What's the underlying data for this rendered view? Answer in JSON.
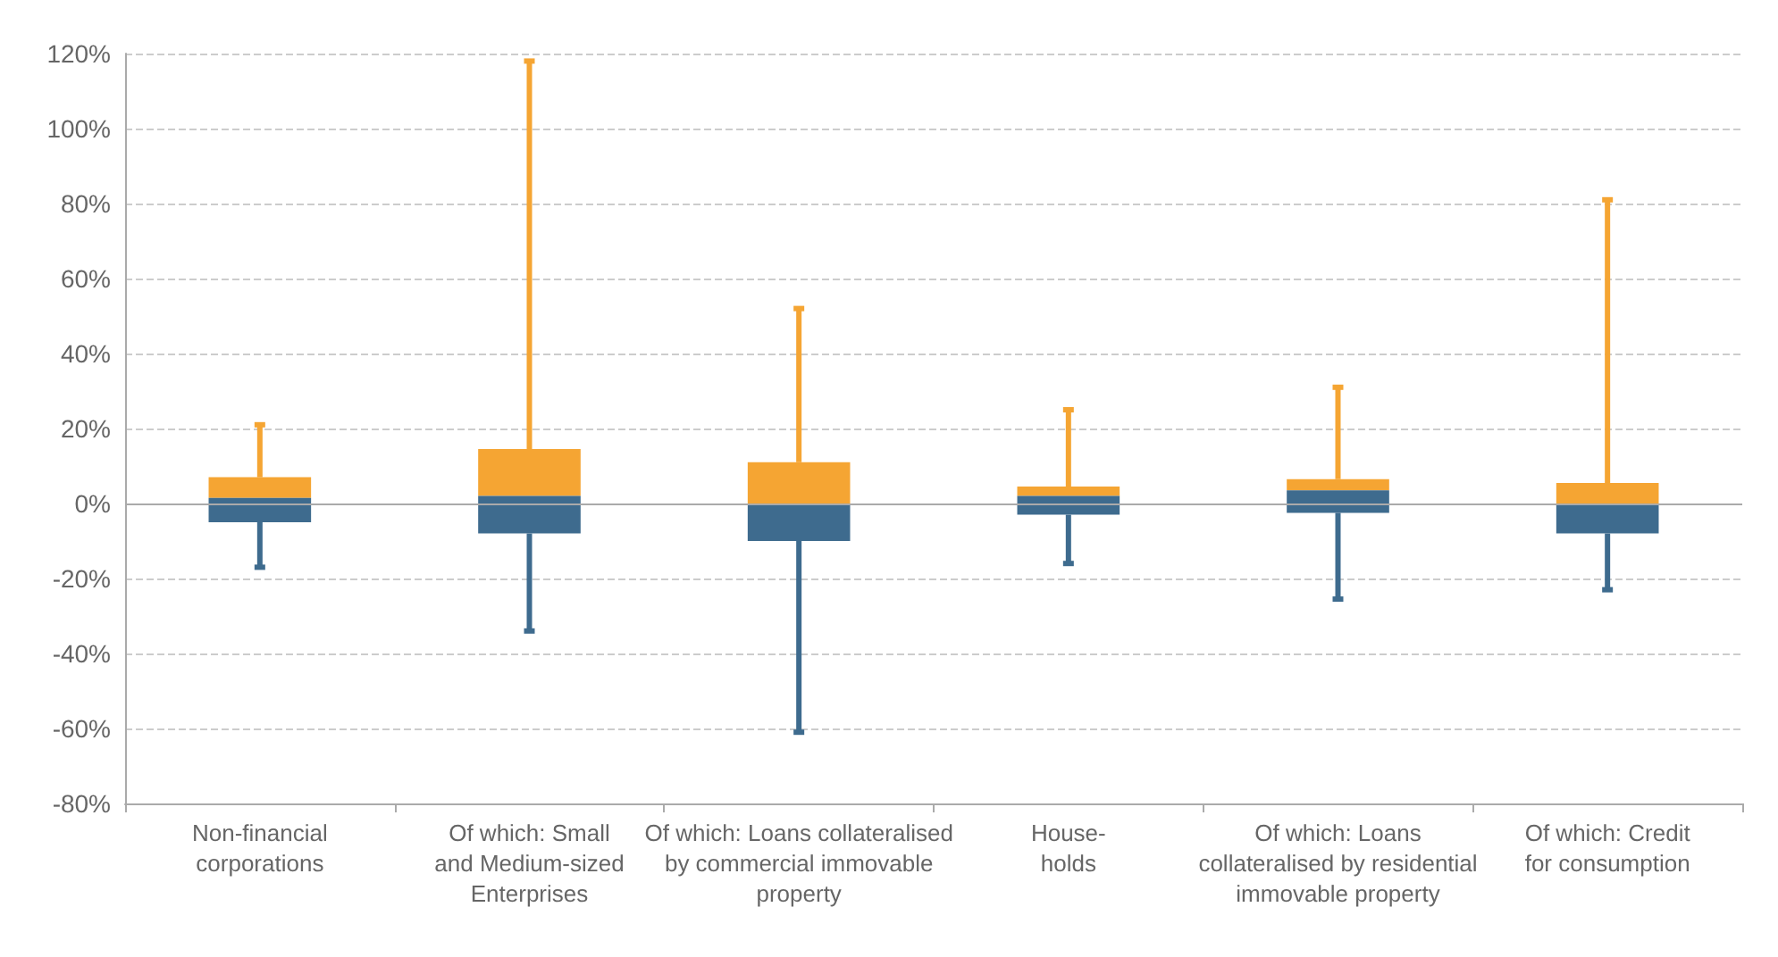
{
  "chart_data": {
    "type": "box",
    "categories": [
      "Non-financial\ncorporations",
      "Of which: Small\nand Medium-sized\nEnterprises",
      "Of which: Loans collateralised\nby commercial immovable\nproperty",
      "House-\nholds",
      "Of which: Loans\ncollateralised by residential\nimmovable property",
      "Of which: Credit\nfor consumption"
    ],
    "boxes": [
      {
        "low": -17,
        "q1": -5,
        "median": 1.5,
        "q3": 7,
        "high": 21
      },
      {
        "low": -34,
        "q1": -8,
        "median": 2,
        "q3": 14.5,
        "high": 118
      },
      {
        "low": -61,
        "q1": -10,
        "median": 0,
        "q3": 11,
        "high": 52
      },
      {
        "low": -16,
        "q1": -3,
        "median": 2,
        "q3": 4.5,
        "high": 25
      },
      {
        "low": -25.5,
        "q1": -2.5,
        "median": 3.5,
        "q3": 6.5,
        "high": 31
      },
      {
        "low": -23,
        "q1": -8,
        "median": 0,
        "q3": 5.5,
        "high": 81
      }
    ],
    "color": "#f5a533",
    "colors": [
      "#3e6b8e",
      "#3e6b8e",
      "#3e6b8e",
      "#3e6b8e",
      "#3e6b8e",
      "#3e6b8e"
    ],
    "ylim": [
      -80,
      120
    ],
    "yticks": [
      {
        "value": -80,
        "label": "-80%"
      },
      {
        "value": -60,
        "label": "-60%"
      },
      {
        "value": -40,
        "label": "-40%"
      },
      {
        "value": -20,
        "label": "-20%"
      },
      {
        "value": 0,
        "label": "0%"
      },
      {
        "value": 20,
        "label": "20%"
      },
      {
        "value": 40,
        "label": "40%"
      },
      {
        "value": 60,
        "label": "60%"
      },
      {
        "value": 80,
        "label": "80%"
      },
      {
        "value": 100,
        "label": "100%"
      },
      {
        "value": 120,
        "label": "120%"
      }
    ],
    "ref_lines": [
      {
        "axis": "y",
        "value": 0,
        "color": "#aaaaaa"
      }
    ],
    "grid": "y"
  }
}
